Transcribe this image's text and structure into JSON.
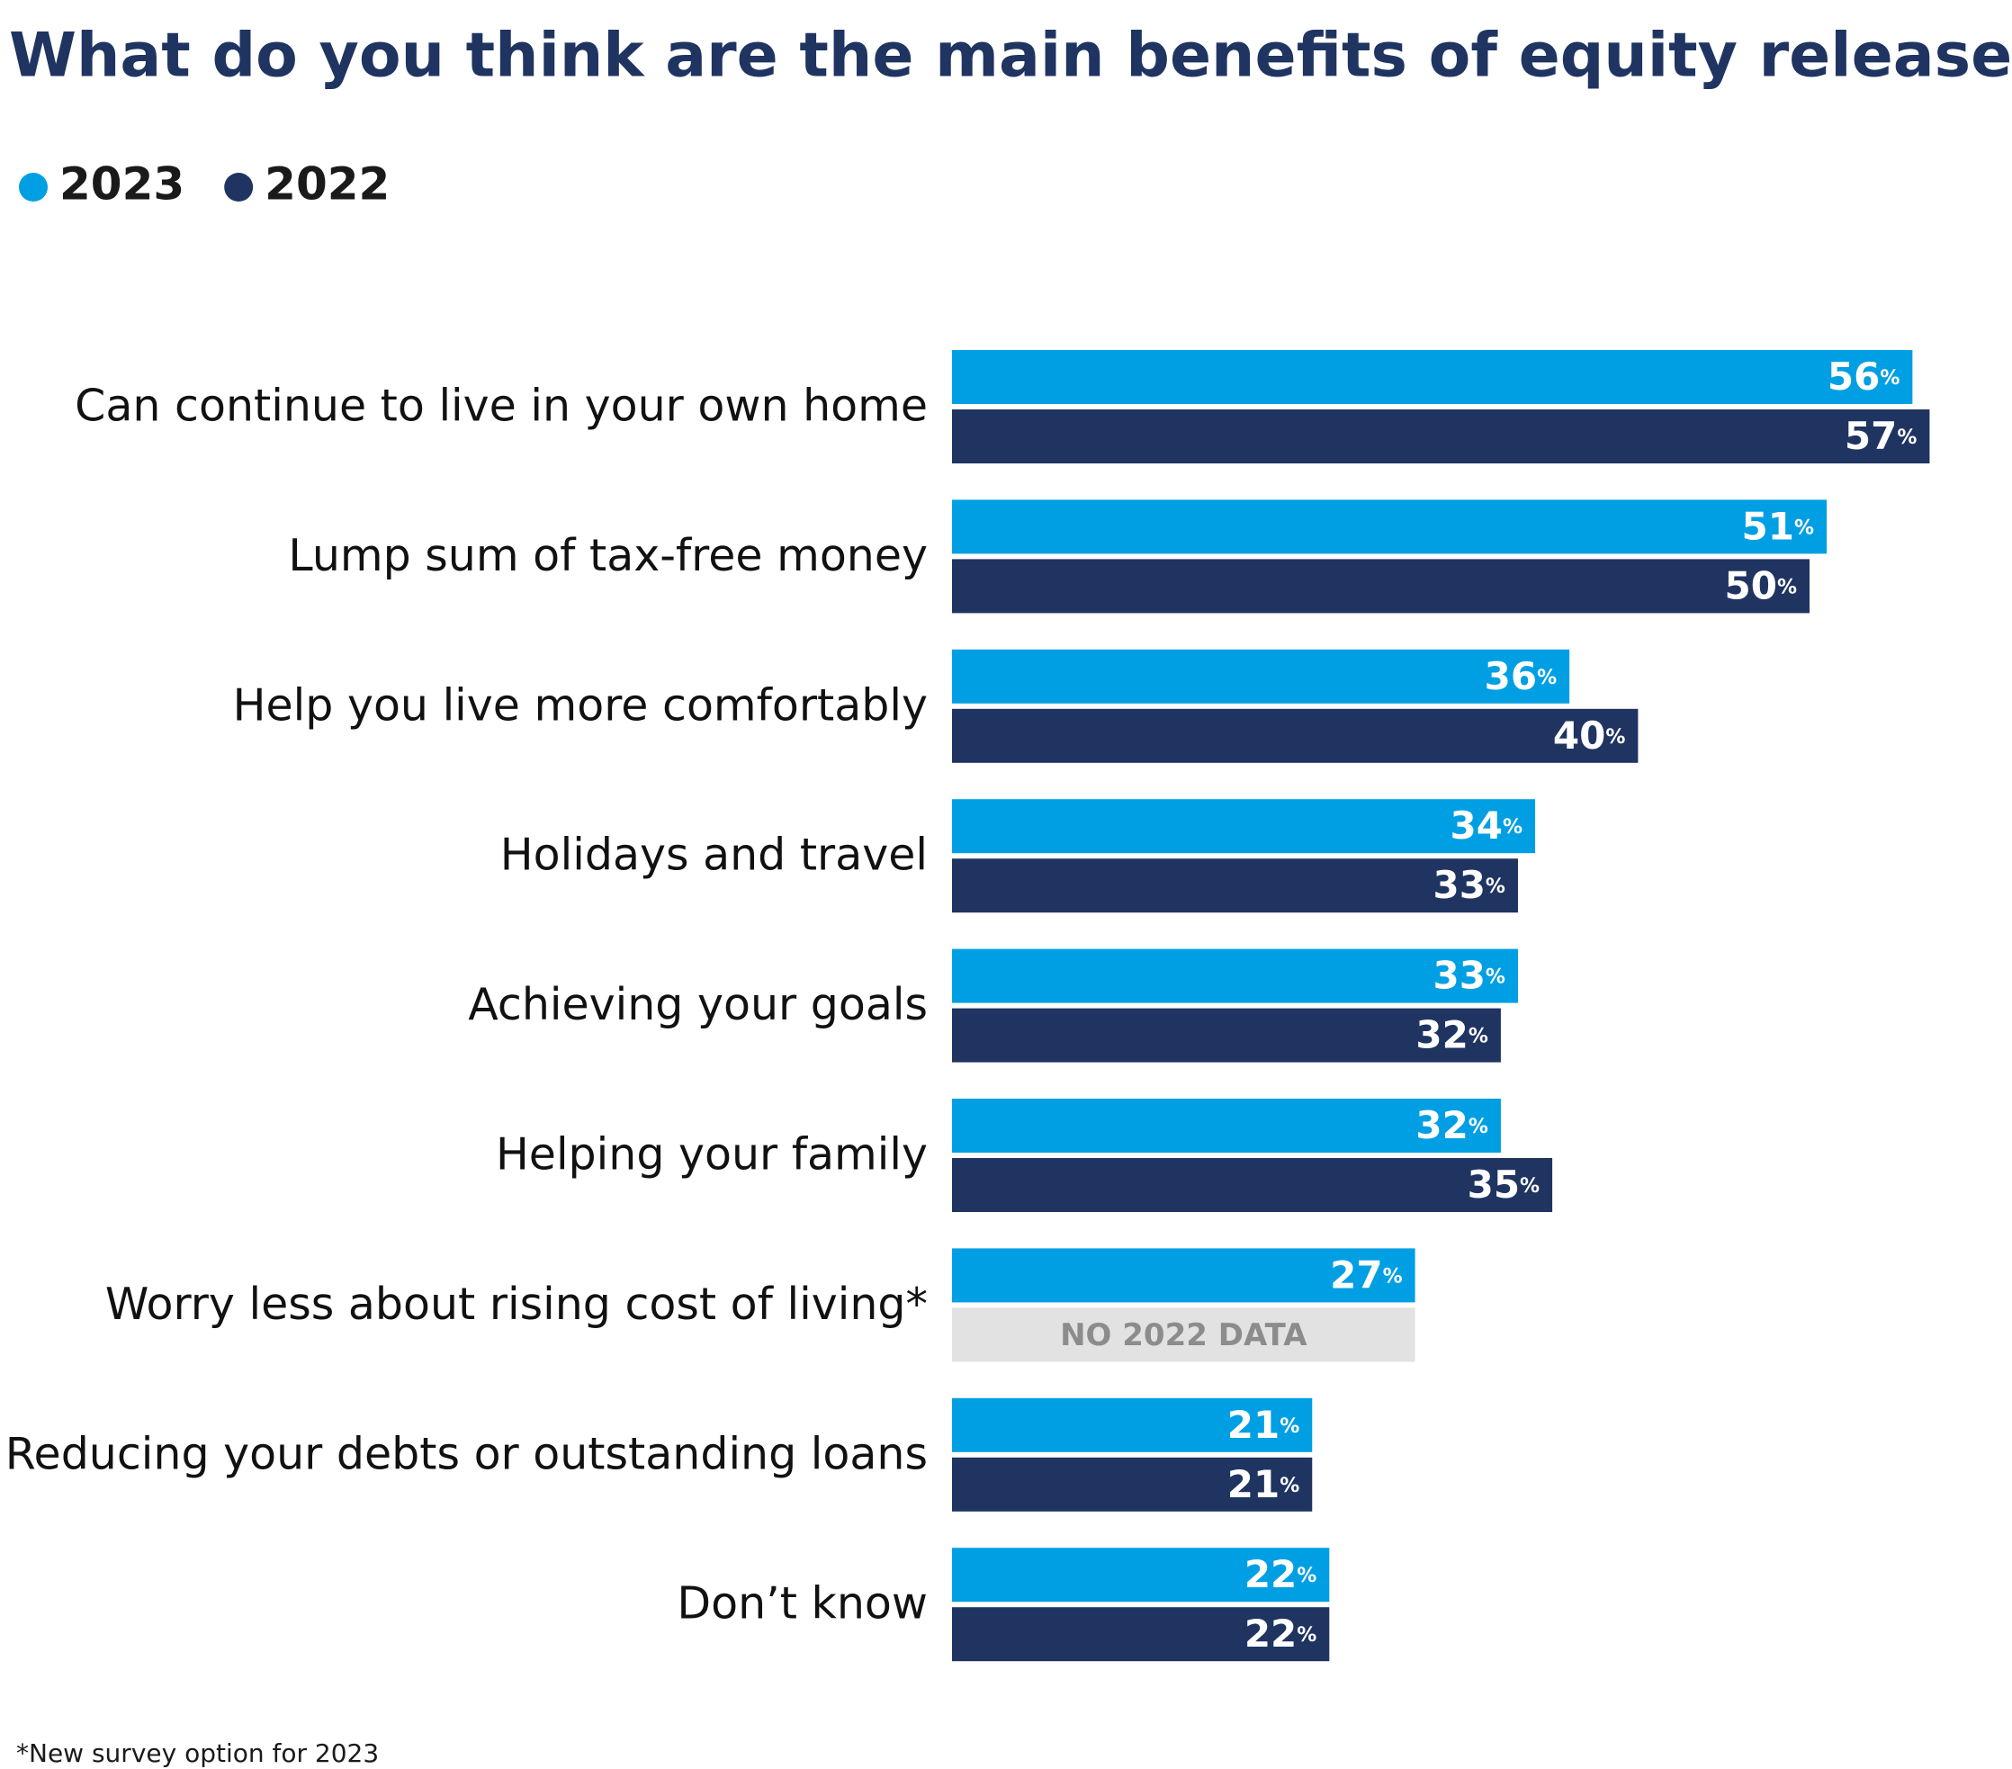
{
  "chart_data": {
    "type": "hbar",
    "title": "What do you think are the main benefits of equity release?",
    "categories": [
      "Can continue to live in your own home",
      "Lump sum of tax-free money",
      "Help you live more comfortably",
      "Holidays and travel",
      "Achieving your goals",
      "Helping your family",
      "Worry less about rising cost of living*",
      "Reducing your debts or outstanding loans",
      "Don’t know"
    ],
    "series": [
      {
        "name": "2023",
        "color": "#009fe3",
        "values": [
          56,
          51,
          36,
          34,
          33,
          32,
          27,
          21,
          22
        ],
        "value_labels": [
          "56%",
          "51%",
          "36%",
          "34%",
          "33%",
          "32%",
          "27%",
          "21%",
          "22%"
        ]
      },
      {
        "name": "2022",
        "color": "#1f3461",
        "values": [
          57,
          50,
          40,
          33,
          32,
          35,
          null,
          21,
          22
        ],
        "value_labels": [
          "57%",
          "50%",
          "40%",
          "33%",
          "32%",
          "35%",
          null,
          "21%",
          "22%"
        ]
      }
    ],
    "no_data_label": "NO 2022 DATA",
    "footnote": "*New survey option for 2023"
  }
}
